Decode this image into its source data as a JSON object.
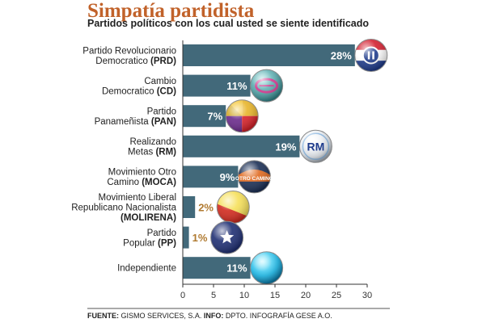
{
  "header": {
    "title": "Simpatía partidista",
    "subtitle": "Partidos políticos con los cual usted se siente identificado"
  },
  "footer": {
    "source_label": "FUENTE:",
    "source_text": " GISMO SERVICES, S.A. ",
    "info_label": "INFO:",
    "info_text": " DPTO. INFOGRAFÍA GESE A.O."
  },
  "chart_data": {
    "type": "bar",
    "orientation": "horizontal",
    "categories": [
      [
        "Partido Revolucionario",
        "Democratico (PRD)"
      ],
      [
        "Cambio",
        "Democratico (CD)"
      ],
      [
        "Partido",
        "Panameñista (PAN)"
      ],
      [
        "Realizando",
        "Metas (RM)"
      ],
      [
        "Movimiento Otro",
        "Camino (MOCA)"
      ],
      [
        "Movimiento Liberal",
        "Republicano Nacionalista",
        "(MOLIRENA)"
      ],
      [
        "Partido",
        "Popular (PP)"
      ],
      [
        "Independiente"
      ]
    ],
    "values": [
      28,
      11,
      7,
      19,
      9,
      2,
      1,
      11
    ],
    "value_labels": [
      "28%",
      "11%",
      "7%",
      "19%",
      "9%",
      "2%",
      "1%",
      "11%"
    ],
    "logo_text": [
      "",
      "",
      "",
      "RM",
      "OTRO CAMINO",
      "",
      "",
      ""
    ],
    "logo_icons": [
      "prd-logo-icon",
      "cd-logo-icon",
      "pan-logo-icon",
      "rm-logo-icon",
      "moca-logo-icon",
      "molirena-logo-icon",
      "pp-logo-icon",
      "independiente-logo-icon"
    ],
    "xlim": [
      0,
      30
    ],
    "xticks": [
      0,
      5,
      10,
      15,
      20,
      25,
      30
    ],
    "grid": false,
    "legend": "none",
    "colors": {
      "bar": "#42697a",
      "label_inside": "#ffffff",
      "label_outside": "#b07a30",
      "title": "#c1622a"
    }
  }
}
